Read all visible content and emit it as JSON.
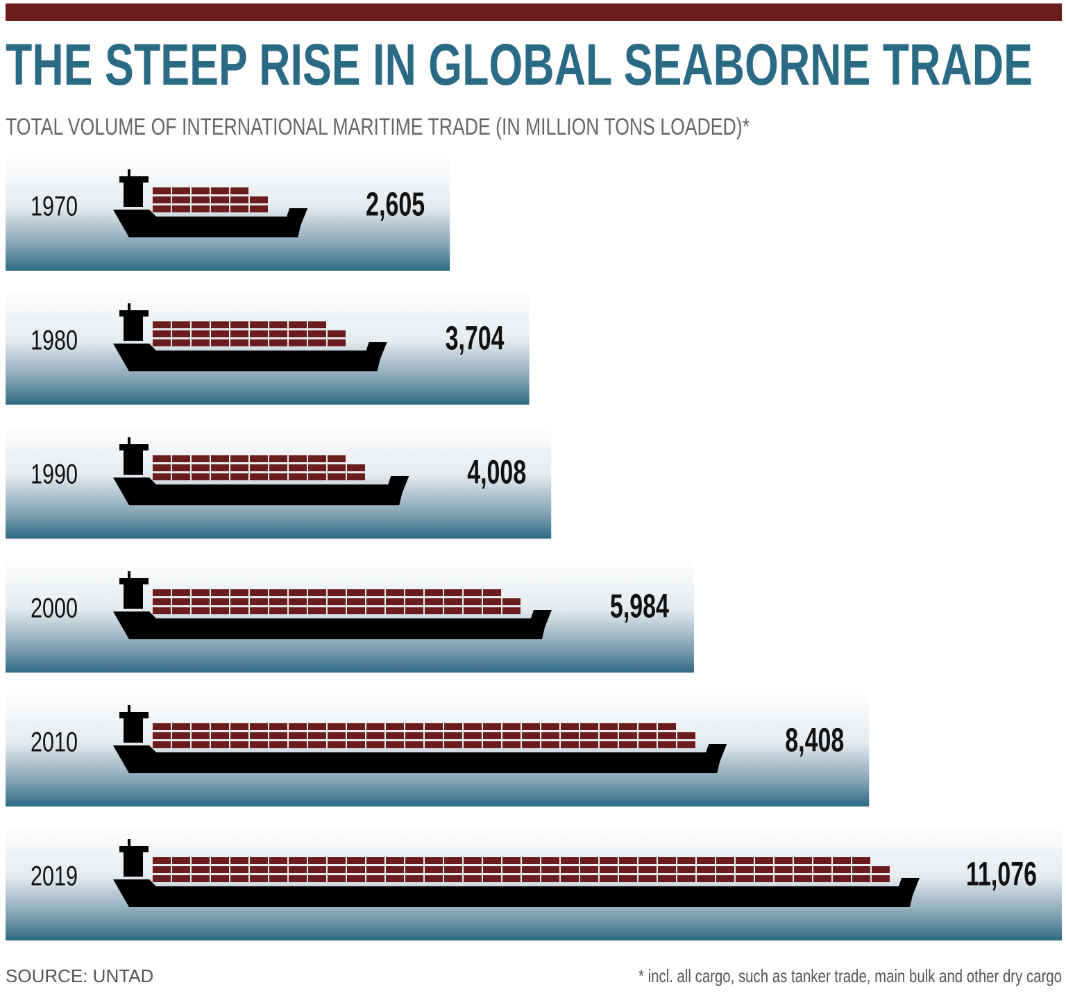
{
  "chart_data": {
    "type": "bar",
    "orientation": "horizontal",
    "title": "THE STEEP RISE IN GLOBAL SEABORNE TRADE",
    "subtitle": "TOTAL VOLUME OF INTERNATIONAL MARITIME TRADE (IN MILLION TONS LOADED)*",
    "categories": [
      "1970",
      "1980",
      "1990",
      "2000",
      "2010",
      "2019"
    ],
    "values": [
      2605,
      3704,
      4008,
      5984,
      8408,
      11076
    ],
    "value_labels": [
      "2,605",
      "3,704",
      "4,008",
      "5,984",
      "8,408",
      "11,076"
    ],
    "color": "#2f6f85",
    "source": "SOURCE: UNTAD",
    "footnote": "* incl. all cargo, such as tanker trade, main bulk and other dry cargo"
  }
}
